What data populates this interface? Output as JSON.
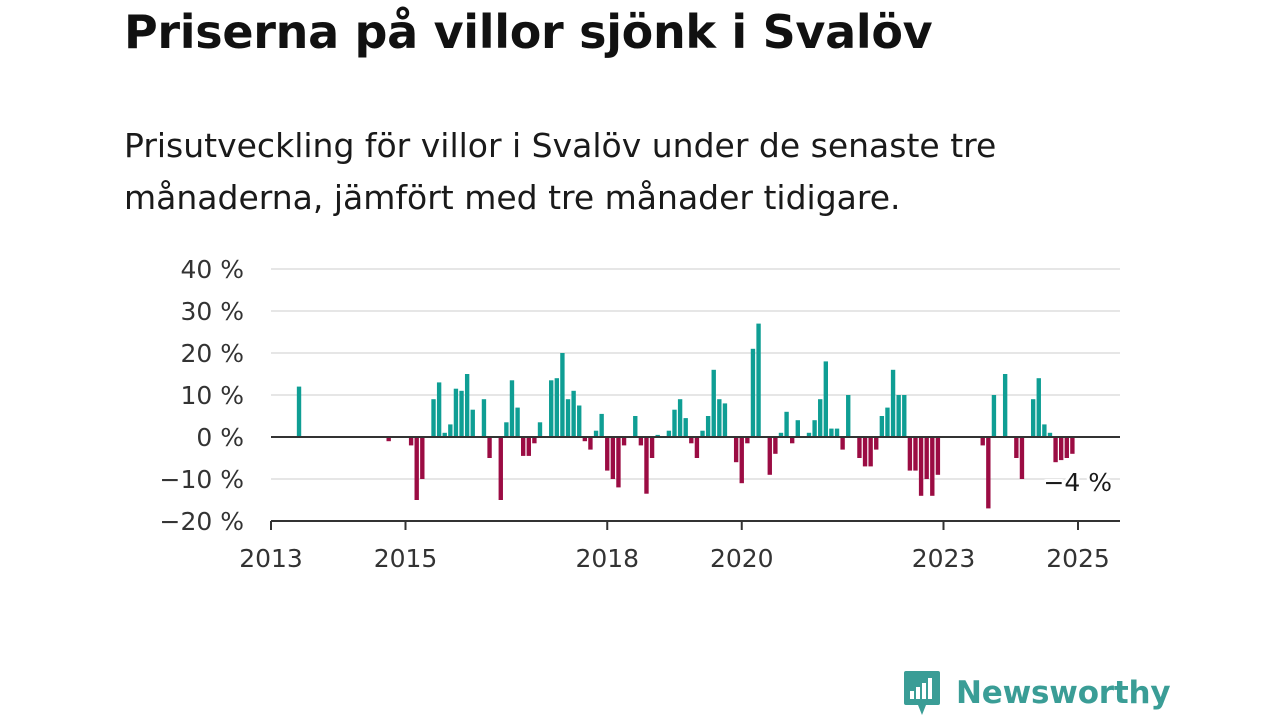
{
  "title": "Priserna på villor sjönk i Svalöv",
  "subtitle": "Prisutveckling för villor i Svalöv under de senaste tre månaderna, jämfört med tre månader tidigare.",
  "brand": {
    "name": "Newsworthy",
    "logo_icon": "chart-bubble-icon",
    "color": "#3a9d96"
  },
  "colors": {
    "positive": "#0f9e94",
    "negative": "#9b0c43",
    "grid": "#dddddd",
    "axis": "#333333"
  },
  "chart_data": {
    "type": "bar",
    "title": "",
    "xlabel": "",
    "ylabel": "",
    "ylim": [
      -20,
      40
    ],
    "y_ticks": [
      -20,
      -10,
      0,
      10,
      20,
      30,
      40
    ],
    "y_tick_labels": [
      "−20 %",
      "−10 %",
      "0 %",
      "10 %",
      "20 %",
      "30 %",
      "40 %"
    ],
    "x_ticks": [
      {
        "label": "2013",
        "month": "2013-01"
      },
      {
        "label": "2015",
        "month": "2015-01"
      },
      {
        "label": "2018",
        "month": "2018-01"
      },
      {
        "label": "2020",
        "month": "2020-01"
      },
      {
        "label": "2023",
        "month": "2023-01"
      },
      {
        "label": "2025",
        "month": "2025-01"
      }
    ],
    "x_range": [
      "2013-01",
      "2025-07"
    ],
    "grid": "horizontal",
    "end_label": "−4 %",
    "series": [
      {
        "values": [
          [
            "2013-06",
            12
          ],
          [
            "2014-10",
            -1
          ],
          [
            "2015-02",
            -2
          ],
          [
            "2015-03",
            -15
          ],
          [
            "2015-04",
            -10
          ],
          [
            "2015-06",
            9
          ],
          [
            "2015-07",
            13
          ],
          [
            "2015-08",
            1
          ],
          [
            "2015-09",
            3
          ],
          [
            "2015-10",
            11.5
          ],
          [
            "2015-11",
            11
          ],
          [
            "2015-12",
            15
          ],
          [
            "2016-01",
            6.5
          ],
          [
            "2016-03",
            9
          ],
          [
            "2016-04",
            -5
          ],
          [
            "2016-06",
            -15
          ],
          [
            "2016-07",
            3.5
          ],
          [
            "2016-08",
            13.5
          ],
          [
            "2016-09",
            7
          ],
          [
            "2016-10",
            -4.5
          ],
          [
            "2016-11",
            -4.5
          ],
          [
            "2016-12",
            -1.5
          ],
          [
            "2017-01",
            3.5
          ],
          [
            "2017-03",
            13.5
          ],
          [
            "2017-04",
            14
          ],
          [
            "2017-05",
            20
          ],
          [
            "2017-06",
            9
          ],
          [
            "2017-07",
            11
          ],
          [
            "2017-08",
            7.5
          ],
          [
            "2017-09",
            -1
          ],
          [
            "2017-10",
            -3
          ],
          [
            "2017-11",
            1.5
          ],
          [
            "2017-12",
            5.5
          ],
          [
            "2018-01",
            -8
          ],
          [
            "2018-02",
            -10
          ],
          [
            "2018-03",
            -12
          ],
          [
            "2018-04",
            -2
          ],
          [
            "2018-06",
            5
          ],
          [
            "2018-07",
            -2
          ],
          [
            "2018-08",
            -13.5
          ],
          [
            "2018-09",
            -5
          ],
          [
            "2018-10",
            0.5
          ],
          [
            "2018-12",
            1.5
          ],
          [
            "2019-01",
            6.5
          ],
          [
            "2019-02",
            9
          ],
          [
            "2019-03",
            4.5
          ],
          [
            "2019-04",
            -1.5
          ],
          [
            "2019-05",
            -5
          ],
          [
            "2019-06",
            1.5
          ],
          [
            "2019-07",
            5
          ],
          [
            "2019-08",
            16
          ],
          [
            "2019-09",
            9
          ],
          [
            "2019-10",
            8
          ],
          [
            "2019-12",
            -6
          ],
          [
            "2020-01",
            -11
          ],
          [
            "2020-02",
            -1.5
          ],
          [
            "2020-03",
            21
          ],
          [
            "2020-04",
            27
          ],
          [
            "2020-06",
            -9
          ],
          [
            "2020-07",
            -4
          ],
          [
            "2020-08",
            1
          ],
          [
            "2020-09",
            6
          ],
          [
            "2020-10",
            -1.5
          ],
          [
            "2020-11",
            4
          ],
          [
            "2021-01",
            1
          ],
          [
            "2021-02",
            4
          ],
          [
            "2021-03",
            9
          ],
          [
            "2021-04",
            18
          ],
          [
            "2021-05",
            2
          ],
          [
            "2021-06",
            2
          ],
          [
            "2021-07",
            -3
          ],
          [
            "2021-08",
            10
          ],
          [
            "2021-10",
            -5
          ],
          [
            "2021-11",
            -7
          ],
          [
            "2021-12",
            -7
          ],
          [
            "2022-01",
            -3
          ],
          [
            "2022-02",
            5
          ],
          [
            "2022-03",
            7
          ],
          [
            "2022-04",
            16
          ],
          [
            "2022-05",
            10
          ],
          [
            "2022-06",
            10
          ],
          [
            "2022-07",
            -8
          ],
          [
            "2022-08",
            -8
          ],
          [
            "2022-09",
            -14
          ],
          [
            "2022-10",
            -10
          ],
          [
            "2022-11",
            -14
          ],
          [
            "2022-12",
            -9
          ],
          [
            "2023-08",
            -2
          ],
          [
            "2023-09",
            -17
          ],
          [
            "2023-10",
            10
          ],
          [
            "2023-12",
            15
          ],
          [
            "2024-02",
            -5
          ],
          [
            "2024-03",
            -10
          ],
          [
            "2024-05",
            9
          ],
          [
            "2024-06",
            14
          ],
          [
            "2024-07",
            3
          ],
          [
            "2024-08",
            1
          ],
          [
            "2024-09",
            -6
          ],
          [
            "2024-10",
            -5.5
          ],
          [
            "2024-11",
            -5
          ],
          [
            "2024-12",
            -4
          ]
        ]
      }
    ]
  }
}
